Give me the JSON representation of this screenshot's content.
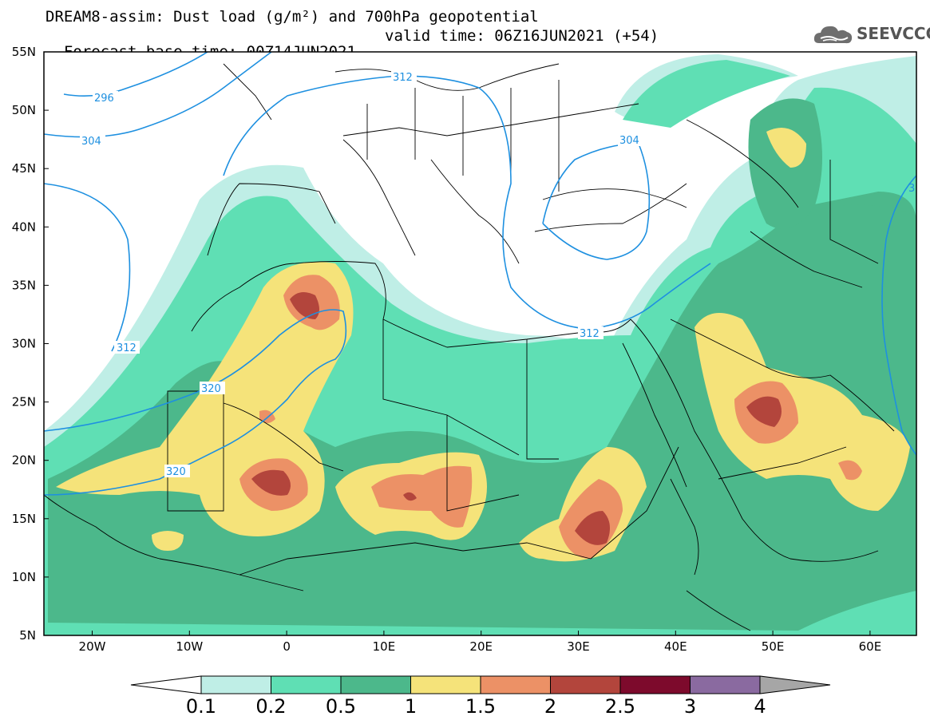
{
  "header": {
    "title_line1": "DREAM8-assim: Dust load (g/m²) and 700hPa geopotential",
    "title_line2_left": "Forecast base time: 00Z14JUN2021",
    "title_line2_right": "valid time: 06Z16JUN2021 (+54)"
  },
  "logo": {
    "text": "SEEVCCC",
    "icon": "cloud-logo-icon"
  },
  "map": {
    "lat_labels": [
      "55N",
      "50N",
      "45N",
      "40N",
      "35N",
      "30N",
      "25N",
      "20N",
      "15N",
      "10N",
      "5N"
    ],
    "lon_labels": [
      "20W",
      "10W",
      "0",
      "10E",
      "20E",
      "30E",
      "40E",
      "50E",
      "60E"
    ],
    "contour_labels": [
      "296",
      "304",
      "312",
      "304",
      "312",
      "320",
      "320",
      "312",
      "3"
    ],
    "colors": {
      "level_01": "#bfeee6",
      "level_02": "#5fdfb4",
      "level_05": "#4cb88b",
      "level_1": "#f5e37a",
      "level_15": "#ec9166",
      "level_2": "#b3453c",
      "level_25": "#7d0a2c",
      "level_3": "#8a6aa0",
      "level_4": "#a6a6a6",
      "contour": "#1e90e0"
    }
  },
  "colorbar": {
    "labels": [
      "0.1",
      "0.2",
      "0.5",
      "1",
      "1.5",
      "2",
      "2.5",
      "3",
      "4"
    ],
    "colors": [
      "#bfeee6",
      "#5fdfb4",
      "#4cb88b",
      "#f5e37a",
      "#ec9166",
      "#b3453c",
      "#7d0a2c",
      "#8a6aa0"
    ]
  }
}
